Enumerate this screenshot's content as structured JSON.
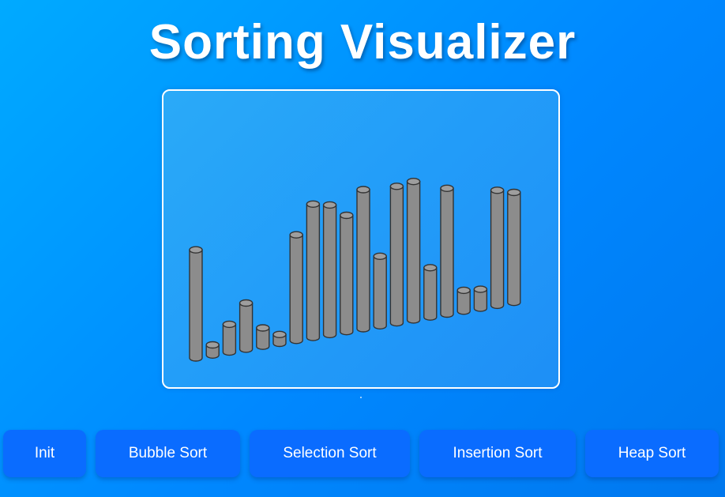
{
  "title": "Sorting Visualizer",
  "visualizer": {
    "array_values": [
      171,
      16,
      44,
      73,
      29,
      14,
      167,
      211,
      205,
      184,
      220,
      110,
      216,
      219,
      78,
      199,
      33,
      30,
      182,
      174
    ],
    "bar_color": "#8c8c8c",
    "bar_top_color": "#9e9e9e",
    "bar_outline_color": "#333333"
  },
  "buttons": {
    "init": "Init",
    "bubble_sort": "Bubble Sort",
    "selection_sort": "Selection Sort",
    "insertion_sort": "Insertion Sort",
    "heap_sort": "Heap Sort"
  },
  "colors": {
    "background_from": "#00aaff",
    "background_to": "#0077ee",
    "button": "#0a6cff",
    "text": "#ffffff"
  }
}
